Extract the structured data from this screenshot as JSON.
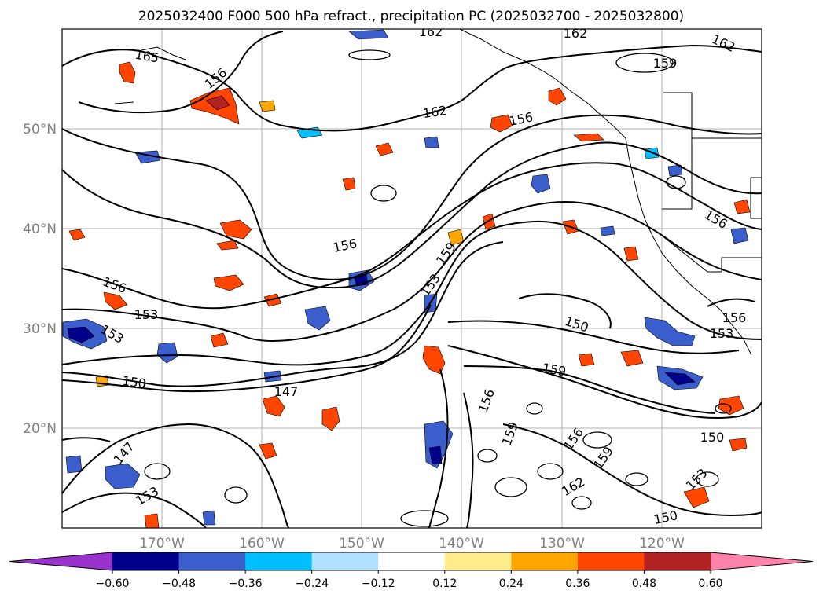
{
  "title": "2025032400 F000 500 hPa refract., precipitation PC (2025032700 - 2025032800)",
  "map": {
    "lon_ticks": [
      "170°W",
      "160°W",
      "150°W",
      "140°W",
      "130°W",
      "120°W"
    ],
    "lat_ticks": [
      "50°N",
      "40°N",
      "30°N",
      "20°N"
    ],
    "extent": {
      "lon": [
        -180,
        -110
      ],
      "lat": [
        10,
        60
      ]
    },
    "grid": true
  },
  "contour_labels": [
    "165",
    "162",
    "162",
    "162",
    "159",
    "162",
    "156",
    "156",
    "156",
    "159",
    "153",
    "153",
    "153",
    "150",
    "150",
    "147",
    "159",
    "156",
    "159",
    "156",
    "159",
    "162",
    "150",
    "153",
    "150",
    "156",
    "156",
    "153",
    "147",
    "153",
    "156"
  ],
  "colorbar": {
    "tick_labels": [
      "−0.60",
      "−0.48",
      "−0.36",
      "−0.24",
      "−0.12",
      "0.12",
      "0.24",
      "0.36",
      "0.48",
      "0.60"
    ],
    "colors": [
      "#9a32cd",
      "#00008b",
      "#3a5fcd",
      "#00bfff",
      "#b0e2ff",
      "#ffffff",
      "#ffec8b",
      "#ffa500",
      "#ff4500",
      "#b22222",
      "#ff82ab"
    ]
  }
}
